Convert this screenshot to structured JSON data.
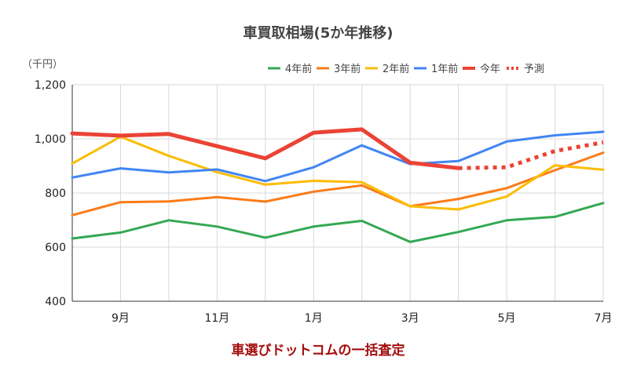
{
  "chart_data": {
    "type": "line",
    "title": "車買取相場(5か年推移)",
    "unit_label": "（千円）",
    "ylim": [
      400,
      1200
    ],
    "y_ticks": [
      "400",
      "600",
      "800",
      "1,000",
      "1,200"
    ],
    "y_tick_values": [
      400,
      600,
      800,
      1000,
      1200
    ],
    "x_count": 12,
    "x_tick_labels": [
      {
        "index": 1,
        "label": "9月"
      },
      {
        "index": 3,
        "label": "11月"
      },
      {
        "index": 5,
        "label": "1月"
      },
      {
        "index": 7,
        "label": "3月"
      },
      {
        "index": 9,
        "label": "5月"
      },
      {
        "index": 11,
        "label": "7月"
      }
    ],
    "grid": true,
    "legend_position": "top-right",
    "series": [
      {
        "name": "4年前",
        "color": "#34a853",
        "values": [
          632,
          654,
          699,
          676,
          635,
          676,
          697,
          619,
          656,
          699,
          712,
          763
        ]
      },
      {
        "name": "3年前",
        "color": "#fa7b17",
        "values": [
          718,
          766,
          769,
          785,
          768,
          805,
          828,
          751,
          778,
          818,
          884,
          949
        ]
      },
      {
        "name": "2年前",
        "color": "#fbbc04",
        "values": [
          909,
          1008,
          937,
          877,
          831,
          845,
          840,
          751,
          739,
          787,
          902,
          886
        ]
      },
      {
        "name": "1年前",
        "color": "#4285f4",
        "values": [
          857,
          891,
          876,
          887,
          844,
          895,
          976,
          907,
          918,
          990,
          1013,
          1026
        ]
      },
      {
        "name": "今年",
        "color": "#ea4335",
        "values": [
          1020,
          1012,
          1018,
          973,
          928,
          1023,
          1035,
          912,
          892,
          null,
          null,
          null
        ]
      },
      {
        "name": "予測",
        "color": "#ea4335",
        "values": [
          null,
          null,
          null,
          null,
          null,
          null,
          null,
          null,
          892,
          895,
          955,
          987
        ]
      }
    ]
  },
  "footer_text": "車選びドットコムの一括査定"
}
